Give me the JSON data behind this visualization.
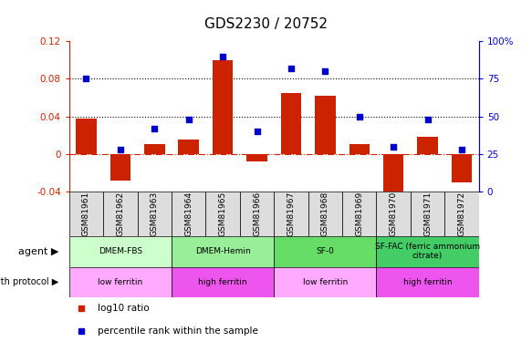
{
  "title": "GDS2230 / 20752",
  "samples": [
    "GSM81961",
    "GSM81962",
    "GSM81963",
    "GSM81964",
    "GSM81965",
    "GSM81966",
    "GSM81967",
    "GSM81968",
    "GSM81969",
    "GSM81970",
    "GSM81971",
    "GSM81972"
  ],
  "log10_ratio": [
    0.038,
    -0.028,
    0.01,
    0.015,
    0.1,
    -0.008,
    0.065,
    0.062,
    0.01,
    -0.048,
    0.018,
    -0.03
  ],
  "percentile_rank": [
    75,
    28,
    42,
    48,
    90,
    40,
    82,
    80,
    50,
    30,
    48,
    28
  ],
  "ylim_left": [
    -0.04,
    0.12
  ],
  "ylim_right": [
    0,
    100
  ],
  "yticks_left": [
    -0.04,
    0,
    0.04,
    0.08,
    0.12
  ],
  "yticks_right": [
    0,
    25,
    50,
    75,
    100
  ],
  "hlines": [
    0.04,
    0.08
  ],
  "bar_color": "#CC2200",
  "scatter_color": "#0000CC",
  "zero_line_color": "#CC2200",
  "agent_groups": [
    {
      "label": "DMEM-FBS",
      "start": 0,
      "end": 3,
      "color": "#CCFFCC"
    },
    {
      "label": "DMEM-Hemin",
      "start": 3,
      "end": 6,
      "color": "#99EE99"
    },
    {
      "label": "SF-0",
      "start": 6,
      "end": 9,
      "color": "#66DD66"
    },
    {
      "label": "SF-FAC (ferric ammonium\ncitrate)",
      "start": 9,
      "end": 12,
      "color": "#44CC66"
    }
  ],
  "protocol_groups": [
    {
      "label": "low ferritin",
      "start": 0,
      "end": 3,
      "color": "#FFAAFF"
    },
    {
      "label": "high ferritin",
      "start": 3,
      "end": 6,
      "color": "#EE55EE"
    },
    {
      "label": "low ferritin",
      "start": 6,
      "end": 9,
      "color": "#FFAAFF"
    },
    {
      "label": "high ferritin",
      "start": 9,
      "end": 12,
      "color": "#EE55EE"
    }
  ],
  "xticklabel_bg": "#DDDDDD",
  "legend_items": [
    {
      "label": "log10 ratio",
      "color": "#CC2200"
    },
    {
      "label": "percentile rank within the sample",
      "color": "#0000CC"
    }
  ]
}
